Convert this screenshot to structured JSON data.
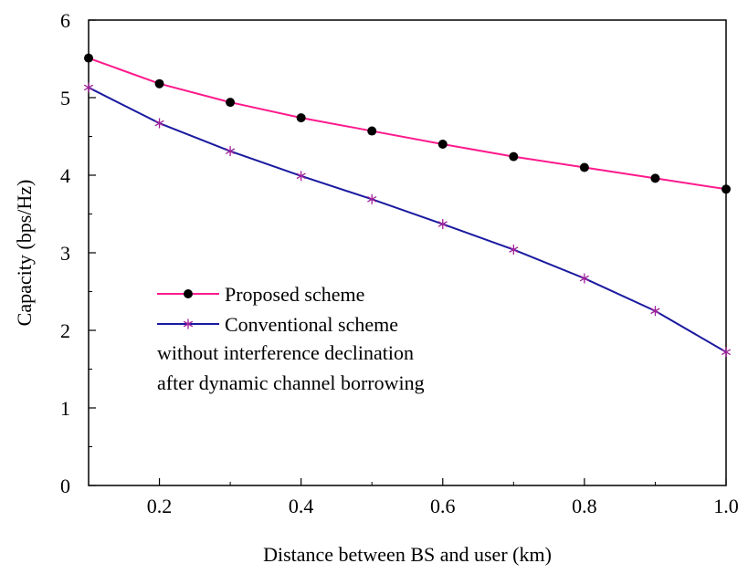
{
  "chart_data": {
    "type": "line",
    "xlabel": "Distance between BS and user (km)",
    "ylabel": "Capacity (bps/Hz)",
    "xlim": [
      0.1,
      1.0
    ],
    "ylim": [
      0,
      6
    ],
    "xticks": [
      0.2,
      0.4,
      0.6,
      0.8,
      1.0
    ],
    "xtick_labels": [
      "0.2",
      "0.4",
      "0.6",
      "0.8",
      "1.0"
    ],
    "yticks": [
      0,
      1,
      2,
      3,
      4,
      5,
      6
    ],
    "ytick_labels": [
      "0",
      "1",
      "2",
      "3",
      "4",
      "5",
      "6"
    ],
    "grid": false,
    "legend_position": "center-left",
    "x": [
      0.1,
      0.2,
      0.3,
      0.4,
      0.5,
      0.6,
      0.7,
      0.8,
      0.9,
      1.0
    ],
    "series": [
      {
        "name": "Proposed scheme",
        "line_color": "#ff1a8c",
        "marker": "dot",
        "marker_color": "#000000",
        "values": [
          5.51,
          5.18,
          4.94,
          4.74,
          4.57,
          4.4,
          4.24,
          4.1,
          3.96,
          3.82
        ]
      },
      {
        "name": "Conventional scheme",
        "line_color": "#1a1aa0",
        "marker": "star",
        "marker_color": "#a0209a",
        "values": [
          5.13,
          4.67,
          4.31,
          3.99,
          3.69,
          3.37,
          3.04,
          2.67,
          2.25,
          1.72
        ]
      }
    ],
    "annotations": [
      "without interference declination",
      "after dynamic channel borrowing"
    ]
  }
}
